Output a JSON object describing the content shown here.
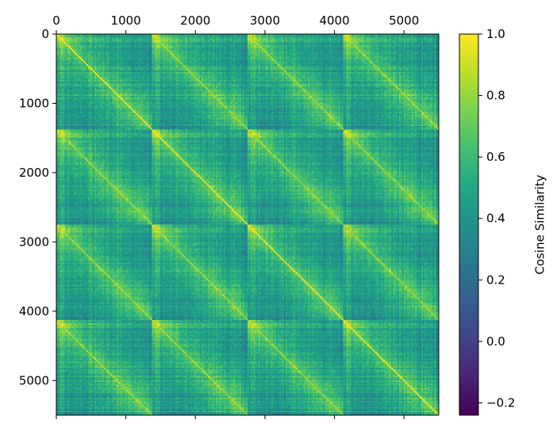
{
  "chart_data": {
    "type": "heatmap",
    "title": "",
    "xlabel": "",
    "ylabel": "",
    "matrix_size": 5500,
    "x_ticks": [
      0,
      1000,
      2000,
      3000,
      4000,
      5000
    ],
    "y_ticks": [
      0,
      1000,
      2000,
      3000,
      4000,
      5000
    ],
    "x_tick_labels": [
      "0",
      "1000",
      "2000",
      "3000",
      "4000",
      "5000"
    ],
    "y_tick_labels": [
      "0",
      "1000",
      "2000",
      "3000",
      "4000",
      "5000"
    ],
    "x_axis_position": "top",
    "block_boundaries": [
      0,
      1375,
      2750,
      4125,
      5500
    ],
    "block_count": 4,
    "diagonal_value": 1.0,
    "colorbar": {
      "label": "Cosine Similarity",
      "vmin": -0.24,
      "vmax": 1.0,
      "ticks": [
        -0.2,
        0.0,
        0.2,
        0.4,
        0.6,
        0.8,
        1.0
      ],
      "tick_labels": [
        "−0.2",
        "0.0",
        "0.2",
        "0.4",
        "0.6",
        "0.8",
        "1.0"
      ],
      "colormap": "viridis"
    },
    "value_summary": {
      "same_block_offset_diagonal": 0.85,
      "block_bulk_typical": 0.45,
      "block_low_bands": 0.2,
      "minimum": -0.24
    }
  }
}
